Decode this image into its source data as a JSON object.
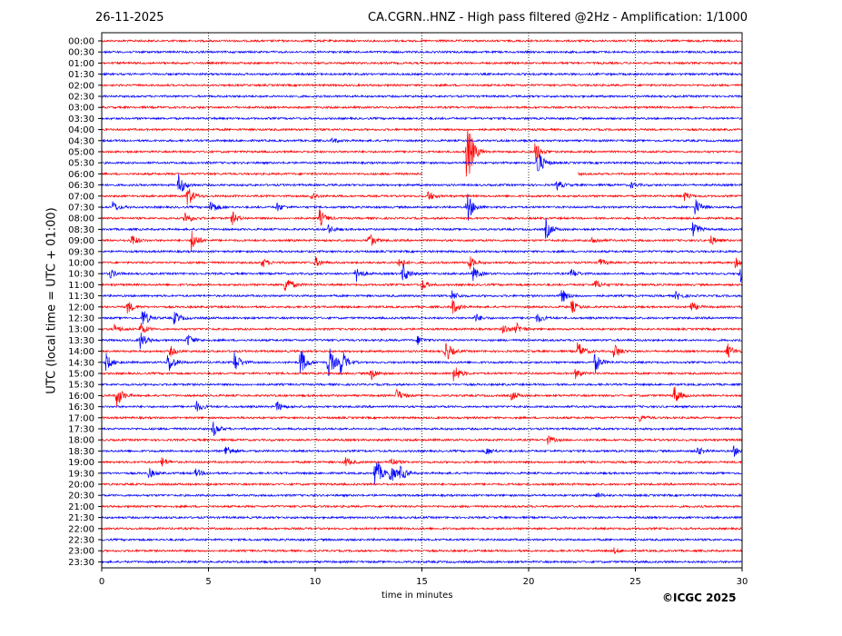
{
  "chart_data": {
    "type": "line",
    "subtype": "helicorder",
    "date": "26-11-2025",
    "title": "CA.CGRN..HNZ - High pass filtered @2Hz - Amplification: 1/1000",
    "xlabel": "time in minutes",
    "ylabel": "UTC (local time = UTC + 01:00)",
    "credit": "©ICGC 2025",
    "xlim": [
      0,
      30
    ],
    "xticks": [
      "0",
      "5",
      "10",
      "15",
      "20",
      "25",
      "30"
    ],
    "grid": "vertical dotted at 5-minute intervals",
    "row_colors": [
      "#ff0000",
      "#0000ff"
    ],
    "rows": [
      "00:00",
      "00:30",
      "01:00",
      "01:30",
      "02:00",
      "02:30",
      "03:00",
      "03:30",
      "04:00",
      "04:30",
      "05:00",
      "05:30",
      "06:00",
      "06:30",
      "07:00",
      "07:30",
      "08:00",
      "08:30",
      "09:00",
      "09:30",
      "10:00",
      "10:30",
      "11:00",
      "11:30",
      "12:00",
      "12:30",
      "13:00",
      "13:30",
      "14:00",
      "14:30",
      "15:00",
      "15:30",
      "16:00",
      "16:30",
      "17:00",
      "17:30",
      "18:00",
      "18:30",
      "19:00",
      "19:30",
      "20:00",
      "20:30",
      "21:00",
      "21:30",
      "22:00",
      "22:30",
      "23:00",
      "23:30"
    ],
    "data_gap": {
      "row": "06:00",
      "x_range": [
        15.0,
        22.3
      ]
    },
    "events": [
      {
        "row": "04:30",
        "x": 10.8,
        "amp": 3
      },
      {
        "row": "05:00",
        "x": 17.1,
        "amp": 45
      },
      {
        "row": "05:00",
        "x": 20.3,
        "amp": 14
      },
      {
        "row": "05:30",
        "x": 20.4,
        "amp": 18
      },
      {
        "row": "06:00",
        "x": 21.8,
        "amp": 8
      },
      {
        "row": "06:30",
        "x": 21.3,
        "amp": 6
      },
      {
        "row": "06:30",
        "x": 3.6,
        "amp": 14
      },
      {
        "row": "06:30",
        "x": 24.8,
        "amp": 3
      },
      {
        "row": "07:00",
        "x": 4.0,
        "amp": 14
      },
      {
        "row": "07:00",
        "x": 9.8,
        "amp": 5
      },
      {
        "row": "07:00",
        "x": 15.3,
        "amp": 6
      },
      {
        "row": "07:00",
        "x": 27.3,
        "amp": 5
      },
      {
        "row": "07:30",
        "x": 0.5,
        "amp": 7
      },
      {
        "row": "07:30",
        "x": 5.1,
        "amp": 9
      },
      {
        "row": "07:30",
        "x": 8.2,
        "amp": 5
      },
      {
        "row": "07:30",
        "x": 17.1,
        "amp": 20
      },
      {
        "row": "07:30",
        "x": 27.8,
        "amp": 10
      },
      {
        "row": "08:00",
        "x": 3.9,
        "amp": 8
      },
      {
        "row": "08:00",
        "x": 6.1,
        "amp": 8
      },
      {
        "row": "08:00",
        "x": 10.2,
        "amp": 10
      },
      {
        "row": "08:30",
        "x": 10.6,
        "amp": 5
      },
      {
        "row": "08:30",
        "x": 20.8,
        "amp": 12
      },
      {
        "row": "08:30",
        "x": 27.7,
        "amp": 10
      },
      {
        "row": "09:00",
        "x": 1.4,
        "amp": 7
      },
      {
        "row": "09:00",
        "x": 4.2,
        "amp": 14
      },
      {
        "row": "09:00",
        "x": 12.5,
        "amp": 10
      },
      {
        "row": "09:00",
        "x": 23.0,
        "amp": 5
      },
      {
        "row": "09:00",
        "x": 28.5,
        "amp": 6
      },
      {
        "row": "10:00",
        "x": 7.5,
        "amp": 6
      },
      {
        "row": "10:00",
        "x": 10.0,
        "amp": 6
      },
      {
        "row": "10:00",
        "x": 13.9,
        "amp": 7
      },
      {
        "row": "10:00",
        "x": 17.2,
        "amp": 8
      },
      {
        "row": "10:00",
        "x": 23.3,
        "amp": 5
      },
      {
        "row": "10:00",
        "x": 29.7,
        "amp": 8
      },
      {
        "row": "10:30",
        "x": 0.4,
        "amp": 5
      },
      {
        "row": "10:30",
        "x": 11.9,
        "amp": 10
      },
      {
        "row": "10:30",
        "x": 14.1,
        "amp": 12
      },
      {
        "row": "10:30",
        "x": 17.4,
        "amp": 8
      },
      {
        "row": "10:30",
        "x": 22.0,
        "amp": 6
      },
      {
        "row": "10:30",
        "x": 29.9,
        "amp": 10
      },
      {
        "row": "11:00",
        "x": 8.6,
        "amp": 12
      },
      {
        "row": "11:00",
        "x": 15.0,
        "amp": 6
      },
      {
        "row": "11:00",
        "x": 23.1,
        "amp": 6
      },
      {
        "row": "11:30",
        "x": 16.4,
        "amp": 6
      },
      {
        "row": "11:30",
        "x": 21.5,
        "amp": 10
      },
      {
        "row": "11:30",
        "x": 26.9,
        "amp": 5
      },
      {
        "row": "12:00",
        "x": 1.2,
        "amp": 8
      },
      {
        "row": "12:00",
        "x": 16.4,
        "amp": 10
      },
      {
        "row": "12:00",
        "x": 22.0,
        "amp": 8
      },
      {
        "row": "12:00",
        "x": 27.6,
        "amp": 6
      },
      {
        "row": "12:30",
        "x": 1.9,
        "amp": 12
      },
      {
        "row": "12:30",
        "x": 3.4,
        "amp": 8
      },
      {
        "row": "12:30",
        "x": 17.5,
        "amp": 5
      },
      {
        "row": "12:30",
        "x": 20.4,
        "amp": 6
      },
      {
        "row": "13:00",
        "x": 0.6,
        "amp": 5
      },
      {
        "row": "13:00",
        "x": 1.8,
        "amp": 8
      },
      {
        "row": "13:00",
        "x": 18.8,
        "amp": 6
      },
      {
        "row": "13:00",
        "x": 19.4,
        "amp": 7
      },
      {
        "row": "13:30",
        "x": 1.8,
        "amp": 10
      },
      {
        "row": "13:30",
        "x": 4.0,
        "amp": 8
      },
      {
        "row": "13:30",
        "x": 14.8,
        "amp": 5
      },
      {
        "row": "14:00",
        "x": 3.2,
        "amp": 6
      },
      {
        "row": "14:00",
        "x": 16.1,
        "amp": 14
      },
      {
        "row": "14:00",
        "x": 22.3,
        "amp": 12
      },
      {
        "row": "14:00",
        "x": 24.0,
        "amp": 10
      },
      {
        "row": "14:00",
        "x": 29.3,
        "amp": 9
      },
      {
        "row": "14:30",
        "x": 0.2,
        "amp": 10
      },
      {
        "row": "14:30",
        "x": 3.1,
        "amp": 14
      },
      {
        "row": "14:30",
        "x": 6.2,
        "amp": 14
      },
      {
        "row": "14:30",
        "x": 9.3,
        "amp": 18
      },
      {
        "row": "14:30",
        "x": 10.6,
        "amp": 22
      },
      {
        "row": "14:30",
        "x": 11.2,
        "amp": 16
      },
      {
        "row": "14:30",
        "x": 23.1,
        "amp": 12
      },
      {
        "row": "15:00",
        "x": 12.6,
        "amp": 8
      },
      {
        "row": "15:00",
        "x": 16.5,
        "amp": 12
      },
      {
        "row": "15:00",
        "x": 22.2,
        "amp": 6
      },
      {
        "row": "16:00",
        "x": 0.7,
        "amp": 14
      },
      {
        "row": "16:00",
        "x": 13.8,
        "amp": 8
      },
      {
        "row": "16:00",
        "x": 19.2,
        "amp": 6
      },
      {
        "row": "16:00",
        "x": 26.8,
        "amp": 12
      },
      {
        "row": "16:30",
        "x": 4.4,
        "amp": 7
      },
      {
        "row": "16:30",
        "x": 8.2,
        "amp": 6
      },
      {
        "row": "17:00",
        "x": 25.2,
        "amp": 4
      },
      {
        "row": "17:30",
        "x": 5.2,
        "amp": 9
      },
      {
        "row": "18:00",
        "x": 20.9,
        "amp": 5
      },
      {
        "row": "18:30",
        "x": 5.8,
        "amp": 8
      },
      {
        "row": "18:30",
        "x": 18.0,
        "amp": 5
      },
      {
        "row": "18:30",
        "x": 27.9,
        "amp": 5
      },
      {
        "row": "18:30",
        "x": 29.6,
        "amp": 6
      },
      {
        "row": "19:00",
        "x": 2.8,
        "amp": 6
      },
      {
        "row": "19:00",
        "x": 11.4,
        "amp": 6
      },
      {
        "row": "19:00",
        "x": 13.5,
        "amp": 6
      },
      {
        "row": "19:30",
        "x": 2.2,
        "amp": 6
      },
      {
        "row": "19:30",
        "x": 4.4,
        "amp": 5
      },
      {
        "row": "19:30",
        "x": 12.8,
        "amp": 22
      },
      {
        "row": "19:30",
        "x": 13.5,
        "amp": 12
      },
      {
        "row": "19:30",
        "x": 14.0,
        "amp": 8
      },
      {
        "row": "20:30",
        "x": 23.2,
        "amp": 3
      },
      {
        "row": "23:00",
        "x": 24.0,
        "amp": 3
      }
    ]
  }
}
